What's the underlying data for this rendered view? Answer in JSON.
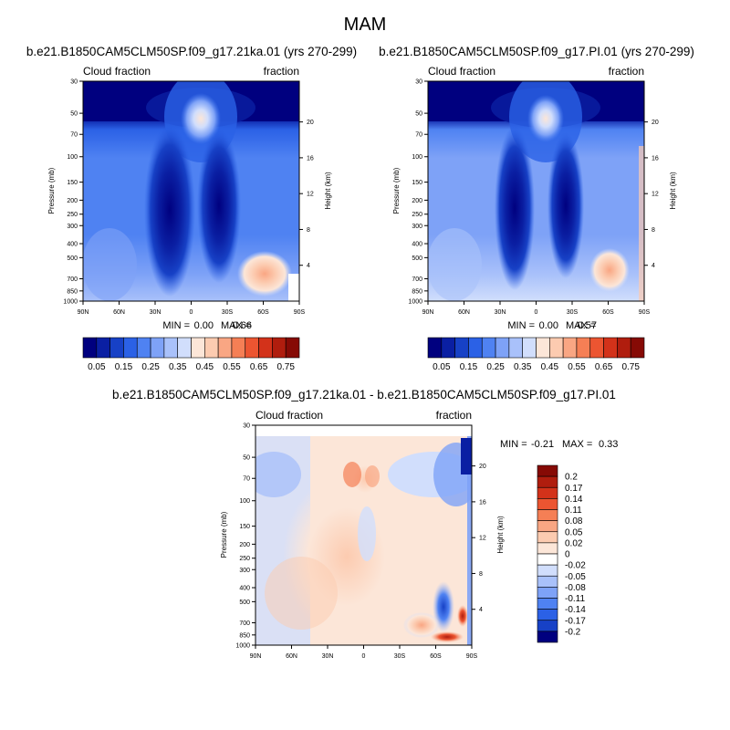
{
  "page_title": "MAM",
  "chart_data": [
    {
      "type": "heatmap",
      "id": "panel1",
      "title": "b.e21.B1850CAM5CLM50SP.f09_g17.21ka.01 (yrs 270-299)",
      "left_label": "Cloud fraction",
      "right_label": "fraction",
      "ylabel": "Pressure (mb)",
      "y2label": "Height (km)",
      "x_ticks": [
        "90N",
        "60N",
        "30N",
        "0",
        "30S",
        "60S",
        "90S"
      ],
      "y_ticks": [
        "1000",
        "850",
        "700",
        "500",
        "400",
        "300",
        "250",
        "200",
        "150",
        "100",
        "70",
        "50",
        "30"
      ],
      "y2_ticks": [
        "4",
        "8",
        "12",
        "16",
        "20"
      ],
      "xlim": [
        90,
        -90
      ],
      "ylim": [
        1000,
        30
      ],
      "stats": {
        "min_label": "MIN =",
        "min": "0.00",
        "max_label": "MAX =",
        "max": "0.66"
      },
      "colorbar": {
        "orientation": "horizontal",
        "labels": [
          "0.05",
          "0.15",
          "0.25",
          "0.35",
          "0.45",
          "0.55",
          "0.65",
          "0.75"
        ],
        "colors": [
          "#00007f",
          "#0a1fa3",
          "#1741c6",
          "#2b61e6",
          "#4f82f2",
          "#7ea2f7",
          "#a9c1fa",
          "#d1defc",
          "#fce6d8",
          "#fccbb0",
          "#f9a683",
          "#f57f55",
          "#ec5531",
          "#d3321a",
          "#b01d0e",
          "#860a05"
        ]
      }
    },
    {
      "type": "heatmap",
      "id": "panel2",
      "title": "b.e21.B1850CAM5CLM50SP.f09_g17.PI.01 (yrs 270-299)",
      "left_label": "Cloud fraction",
      "right_label": "fraction",
      "ylabel": "Pressure (mb)",
      "y2label": "Height (km)",
      "x_ticks": [
        "90N",
        "60N",
        "30N",
        "0",
        "30S",
        "60S",
        "90S"
      ],
      "y_ticks": [
        "1000",
        "850",
        "700",
        "500",
        "400",
        "300",
        "250",
        "200",
        "150",
        "100",
        "70",
        "50",
        "30"
      ],
      "y2_ticks": [
        "4",
        "8",
        "12",
        "16",
        "20"
      ],
      "xlim": [
        90,
        -90
      ],
      "ylim": [
        1000,
        30
      ],
      "stats": {
        "min_label": "MIN =",
        "min": "0.00",
        "max_label": "MAX =",
        "max": "0.57"
      },
      "colorbar": {
        "orientation": "horizontal",
        "labels": [
          "0.05",
          "0.15",
          "0.25",
          "0.35",
          "0.45",
          "0.55",
          "0.65",
          "0.75"
        ],
        "colors": [
          "#00007f",
          "#0a1fa3",
          "#1741c6",
          "#2b61e6",
          "#4f82f2",
          "#7ea2f7",
          "#a9c1fa",
          "#d1defc",
          "#fce6d8",
          "#fccbb0",
          "#f9a683",
          "#f57f55",
          "#ec5531",
          "#d3321a",
          "#b01d0e",
          "#860a05"
        ]
      }
    },
    {
      "type": "heatmap",
      "id": "panel3",
      "title": "b.e21.B1850CAM5CLM50SP.f09_g17.21ka.01 - b.e21.B1850CAM5CLM50SP.f09_g17.PI.01",
      "left_label": "Cloud fraction",
      "right_label": "fraction",
      "ylabel": "Pressure (mb)",
      "y2label": "Height (km)",
      "x_ticks": [
        "90N",
        "60N",
        "30N",
        "0",
        "30S",
        "60S",
        "90S"
      ],
      "y_ticks": [
        "1000",
        "850",
        "700",
        "500",
        "400",
        "300",
        "250",
        "200",
        "150",
        "100",
        "70",
        "50",
        "30"
      ],
      "y2_ticks": [
        "4",
        "8",
        "12",
        "16",
        "20"
      ],
      "xlim": [
        90,
        -90
      ],
      "ylim": [
        1000,
        30
      ],
      "stats": {
        "min_label": "MIN =",
        "min": "-0.21",
        "max_label": "MAX =",
        "max": "0.33"
      },
      "colorbar": {
        "orientation": "vertical",
        "labels": [
          "0.2",
          "0.17",
          "0.14",
          "0.11",
          "0.08",
          "0.05",
          "0.02",
          "0",
          "-0.02",
          "-0.05",
          "-0.08",
          "-0.11",
          "-0.14",
          "-0.17",
          "-0.2"
        ],
        "colors": [
          "#860a05",
          "#b01d0e",
          "#d3321a",
          "#ec5531",
          "#f57f55",
          "#f9a683",
          "#fccbb0",
          "#fce6d8",
          "#ffffff",
          "#d1defc",
          "#a9c1fa",
          "#7ea2f7",
          "#4f82f2",
          "#2b61e6",
          "#1741c6",
          "#00007f"
        ]
      }
    }
  ]
}
